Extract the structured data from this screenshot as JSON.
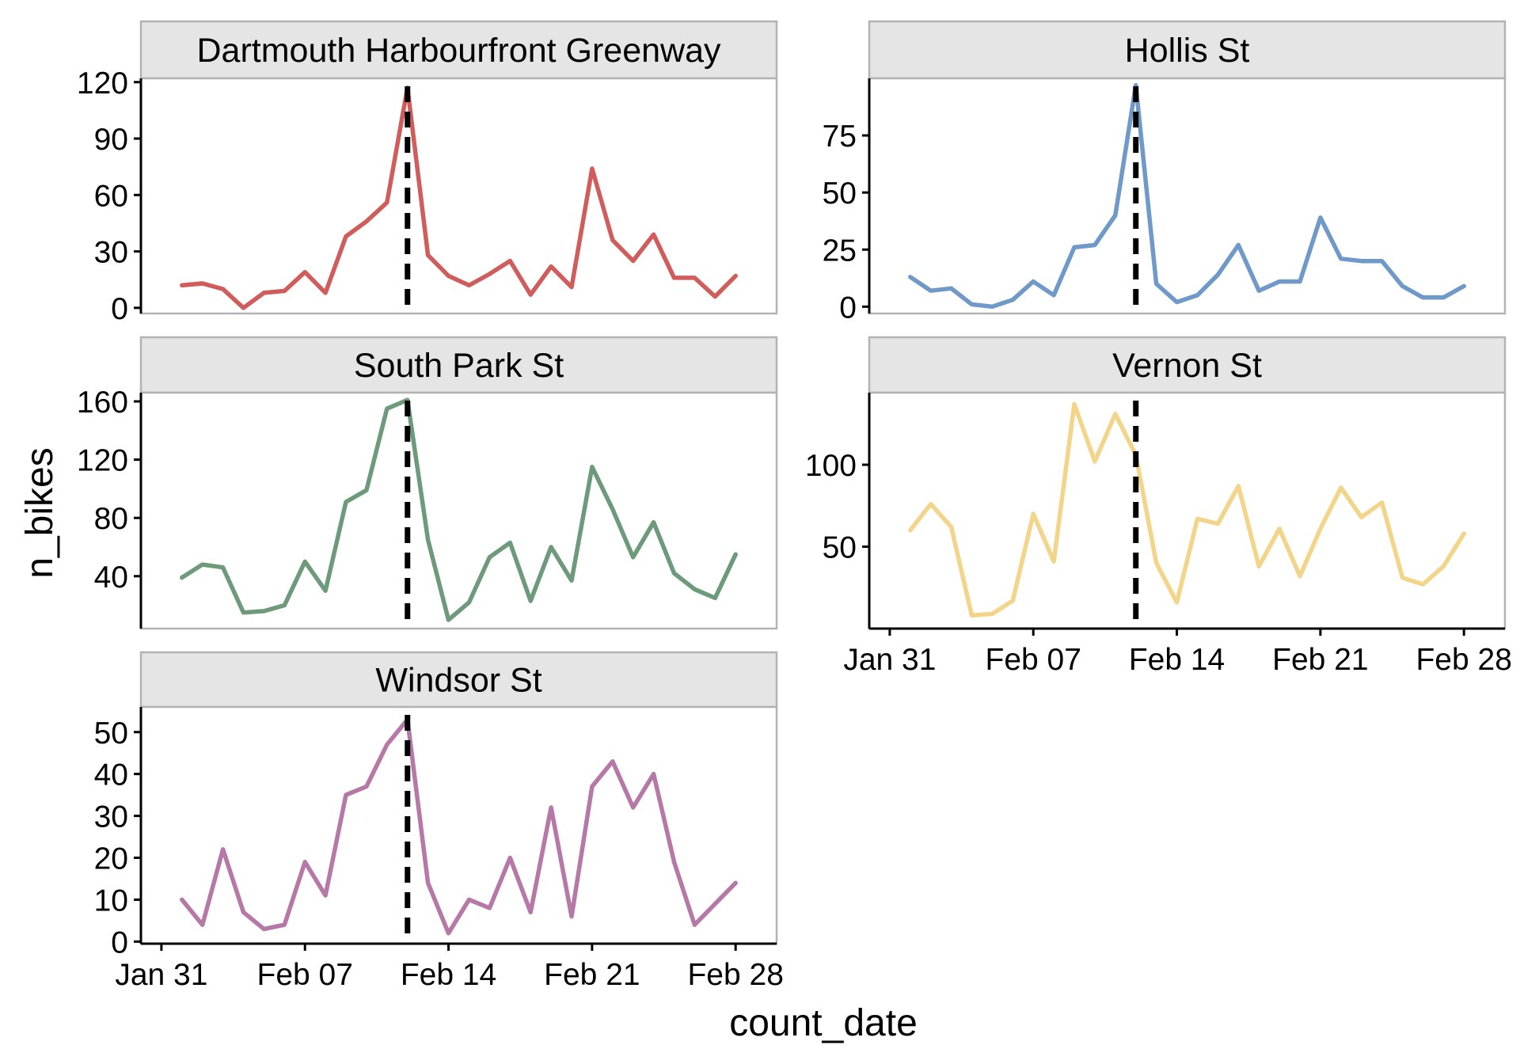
{
  "chart_data": {
    "type": "line",
    "layout": "facet_wrap",
    "xlabel": "count_date",
    "ylabel": "n_bikes",
    "x_tick_labels": [
      "Jan 31",
      "Feb 07",
      "Feb 14",
      "Feb 21",
      "Feb 28"
    ],
    "x_tick_dates": [
      "2021-01-31",
      "2021-02-07",
      "2021-02-14",
      "2021-02-21",
      "2021-02-28"
    ],
    "x_range": [
      "2021-01-30",
      "2021-03-02"
    ],
    "reference_date": "2021-02-12",
    "reference_line_style": "dashed",
    "grid": false,
    "legend": "none",
    "dates": [
      "2021-02-01",
      "2021-02-02",
      "2021-02-03",
      "2021-02-04",
      "2021-02-05",
      "2021-02-06",
      "2021-02-07",
      "2021-02-08",
      "2021-02-09",
      "2021-02-10",
      "2021-02-11",
      "2021-02-12",
      "2021-02-13",
      "2021-02-14",
      "2021-02-15",
      "2021-02-16",
      "2021-02-17",
      "2021-02-18",
      "2021-02-19",
      "2021-02-20",
      "2021-02-21",
      "2021-02-22",
      "2021-02-23",
      "2021-02-24",
      "2021-02-25",
      "2021-02-26",
      "2021-02-27",
      "2021-02-28"
    ],
    "panels": [
      {
        "title": "Dartmouth Harbourfront Greenway",
        "color": "#d05c5c",
        "ylim": [
          -3,
          122
        ],
        "yticks": [
          0,
          30,
          60,
          90,
          120
        ],
        "values": [
          12,
          13,
          10,
          0,
          8,
          9,
          19,
          8,
          38,
          46,
          56,
          117,
          28,
          17,
          12,
          18,
          25,
          7,
          22,
          11,
          74,
          36,
          25,
          39,
          16,
          16,
          6,
          17
        ]
      },
      {
        "title": "Hollis St",
        "color": "#6e99c9",
        "ylim": [
          -3,
          100
        ],
        "yticks": [
          0,
          25,
          50,
          75
        ],
        "values": [
          13,
          7,
          8,
          1,
          0,
          3,
          11,
          5,
          26,
          27,
          40,
          97,
          10,
          2,
          5,
          14,
          27,
          7,
          11,
          11,
          39,
          21,
          20,
          20,
          9,
          4,
          4,
          9
        ]
      },
      {
        "title": "South Park St",
        "color": "#6d9a7a",
        "ylim": [
          4,
          166
        ],
        "yticks": [
          40,
          80,
          120,
          160
        ],
        "values": [
          39,
          48,
          46,
          15,
          16,
          20,
          50,
          30,
          91,
          99,
          155,
          161,
          65,
          10,
          22,
          53,
          63,
          23,
          60,
          37,
          115,
          86,
          53,
          77,
          42,
          31,
          25,
          55
        ]
      },
      {
        "title": "Vernon St",
        "color": "#f2d589",
        "ylim": [
          0,
          144
        ],
        "yticks": [
          50,
          100
        ],
        "values": [
          60,
          76,
          62,
          8,
          9,
          17,
          70,
          41,
          137,
          102,
          131,
          106,
          40,
          16,
          67,
          64,
          87,
          38,
          61,
          32,
          61,
          86,
          68,
          77,
          31,
          27,
          38,
          58
        ]
      },
      {
        "title": "Windsor St",
        "color": "#b679a7",
        "ylim": [
          -0.5,
          56
        ],
        "yticks": [
          0,
          10,
          20,
          30,
          40,
          50
        ],
        "values": [
          10,
          4,
          22,
          7,
          3,
          4,
          19,
          11,
          35,
          37,
          47,
          53,
          14,
          2,
          10,
          8,
          20,
          7,
          32,
          6,
          37,
          43,
          32,
          40,
          19,
          4,
          9,
          14
        ]
      }
    ]
  }
}
